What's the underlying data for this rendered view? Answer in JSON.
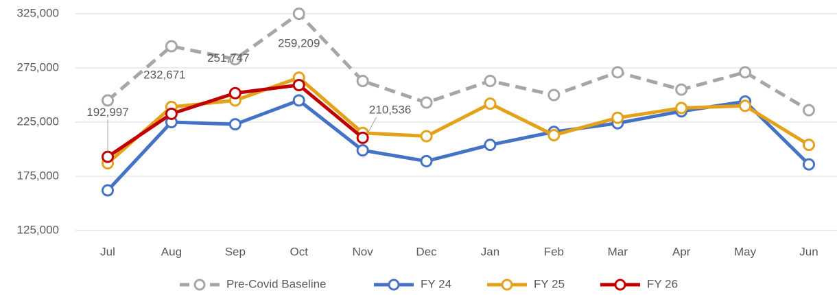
{
  "chart_data": {
    "type": "line",
    "categories": [
      "Jul",
      "Aug",
      "Sep",
      "Oct",
      "Nov",
      "Dec",
      "Jan",
      "Feb",
      "Mar",
      "Apr",
      "May",
      "Jun"
    ],
    "series": [
      {
        "name": "Pre-Covid Baseline",
        "color": "#a6a6a6",
        "dashed": true,
        "values": [
          245000,
          295000,
          283000,
          325000,
          263000,
          243000,
          263000,
          250000,
          271000,
          255000,
          271000,
          236000
        ]
      },
      {
        "name": "FY 24",
        "color": "#4472c4",
        "values": [
          162000,
          225000,
          223000,
          245000,
          199000,
          189000,
          204000,
          216000,
          224000,
          235000,
          244000,
          186000
        ]
      },
      {
        "name": "FY 25",
        "color": "#e3a21a",
        "values": [
          187000,
          239000,
          245000,
          266000,
          215000,
          212000,
          242000,
          213000,
          229000,
          238000,
          240000,
          204000
        ]
      },
      {
        "name": "FY 26",
        "color": "#c00000",
        "values": [
          192997,
          232671,
          251747,
          259209,
          210536,
          null,
          null,
          null,
          null,
          null,
          null,
          null
        ],
        "value_labels": [
          "192,997",
          "232,671",
          "251,747",
          "259,209",
          "210,536",
          null,
          null,
          null,
          null,
          null,
          null,
          null
        ]
      }
    ],
    "ylim": [
      125000,
      325000
    ],
    "yticks": [
      {
        "value": 125000,
        "label": "125,000"
      },
      {
        "value": 175000,
        "label": "175,000"
      },
      {
        "value": 225000,
        "label": "225,000"
      },
      {
        "value": 275000,
        "label": "275,000"
      },
      {
        "value": 325000,
        "label": "325,000"
      }
    ],
    "grid": true,
    "legend": "bottom"
  }
}
